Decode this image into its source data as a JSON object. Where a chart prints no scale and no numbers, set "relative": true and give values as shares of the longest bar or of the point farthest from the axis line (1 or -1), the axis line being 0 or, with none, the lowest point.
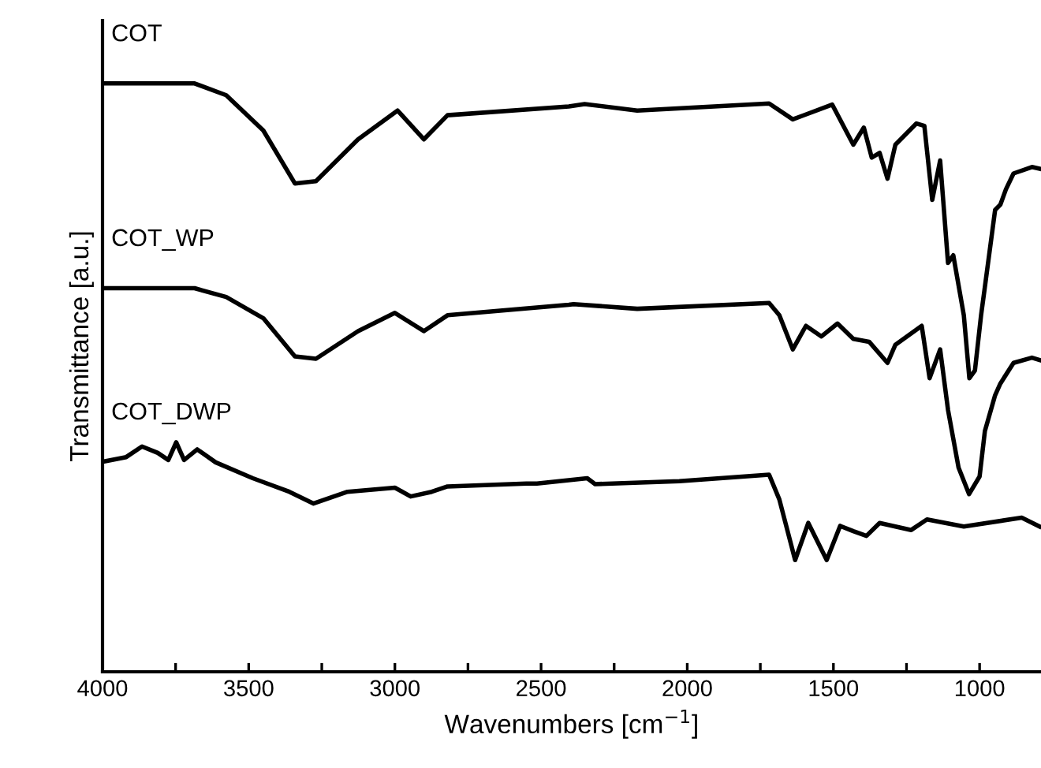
{
  "chart_data": {
    "type": "line",
    "relative": true,
    "xlabel": "Wavenumbers [cm$^{−1}$]",
    "ylabel": "Transmittance [a.u.]",
    "xlim": [
      4000,
      790
    ],
    "xticks": [
      4000,
      {
        "value": 3750,
        "label": null
      },
      3500,
      {
        "value": 3250,
        "label": null
      },
      3000,
      {
        "value": 2750,
        "label": null
      },
      2500,
      {
        "value": 2250,
        "label": null
      },
      2000,
      {
        "value": 1750,
        "label": null
      },
      1500,
      {
        "value": 1250,
        "label": null
      },
      1000
    ],
    "grid": false,
    "legend": false,
    "marker": "none",
    "line_style": "solid",
    "series": [
      {
        "name": "COT",
        "color": "#000000",
        "x": [
          4000,
          3685,
          3577,
          3450,
          3342,
          3270,
          3126,
          2991,
          2901,
          2820,
          2405,
          2351,
          2171,
          1720,
          1639,
          1504,
          1432,
          1396,
          1369,
          1342,
          1315,
          1288,
          1216,
          1189,
          1162,
          1135,
          1108,
          1090,
          1054,
          1035,
          1016,
          995,
          983,
          947,
          929,
          910,
          884,
          821,
          795
        ],
        "values": [
          1.0,
          1.0,
          0.98,
          0.92,
          0.83,
          0.834,
          0.905,
          0.954,
          0.905,
          0.946,
          0.961,
          0.965,
          0.954,
          0.966,
          0.939,
          0.964,
          0.896,
          0.925,
          0.874,
          0.882,
          0.838,
          0.896,
          0.932,
          0.928,
          0.802,
          0.869,
          0.695,
          0.708,
          0.606,
          0.499,
          0.512,
          0.606,
          0.65,
          0.785,
          0.794,
          0.82,
          0.847,
          0.858,
          0.855
        ]
      },
      {
        "name": "COT_WP",
        "color": "#000000",
        "x": [
          4000,
          3685,
          3577,
          3450,
          3342,
          3270,
          3126,
          3000,
          2901,
          2820,
          2405,
          2389,
          2171,
          1720,
          1685,
          1639,
          1594,
          1541,
          1486,
          1432,
          1378,
          1315,
          1288,
          1198,
          1171,
          1135,
          1108,
          1072,
          1036,
          1000,
          982,
          947,
          929,
          884,
          821,
          795
        ],
        "values": [
          0.652,
          0.652,
          0.637,
          0.601,
          0.536,
          0.532,
          0.579,
          0.61,
          0.579,
          0.606,
          0.624,
          0.625,
          0.617,
          0.627,
          0.606,
          0.548,
          0.588,
          0.57,
          0.592,
          0.566,
          0.561,
          0.525,
          0.556,
          0.588,
          0.499,
          0.548,
          0.445,
          0.347,
          0.302,
          0.332,
          0.409,
          0.47,
          0.49,
          0.525,
          0.534,
          0.53
        ]
      },
      {
        "name": "COT_DWP",
        "color": "#000000",
        "x": [
          4000,
          3919,
          3865,
          3811,
          3775,
          3748,
          3721,
          3676,
          3613,
          3486,
          3361,
          3279,
          3162,
          3000,
          2946,
          2874,
          2820,
          2550,
          2514,
          2342,
          2315,
          2027,
          1720,
          1685,
          1631,
          1586,
          1523,
          1477,
          1432,
          1387,
          1342,
          1234,
          1180,
          1054,
          856,
          795
        ],
        "values": [
          0.357,
          0.365,
          0.383,
          0.372,
          0.36,
          0.39,
          0.36,
          0.378,
          0.356,
          0.329,
          0.306,
          0.286,
          0.306,
          0.313,
          0.298,
          0.306,
          0.315,
          0.32,
          0.32,
          0.329,
          0.319,
          0.324,
          0.335,
          0.293,
          0.19,
          0.253,
          0.19,
          0.248,
          0.239,
          0.231,
          0.253,
          0.241,
          0.259,
          0.247,
          0.262,
          0.247
        ]
      }
    ]
  }
}
